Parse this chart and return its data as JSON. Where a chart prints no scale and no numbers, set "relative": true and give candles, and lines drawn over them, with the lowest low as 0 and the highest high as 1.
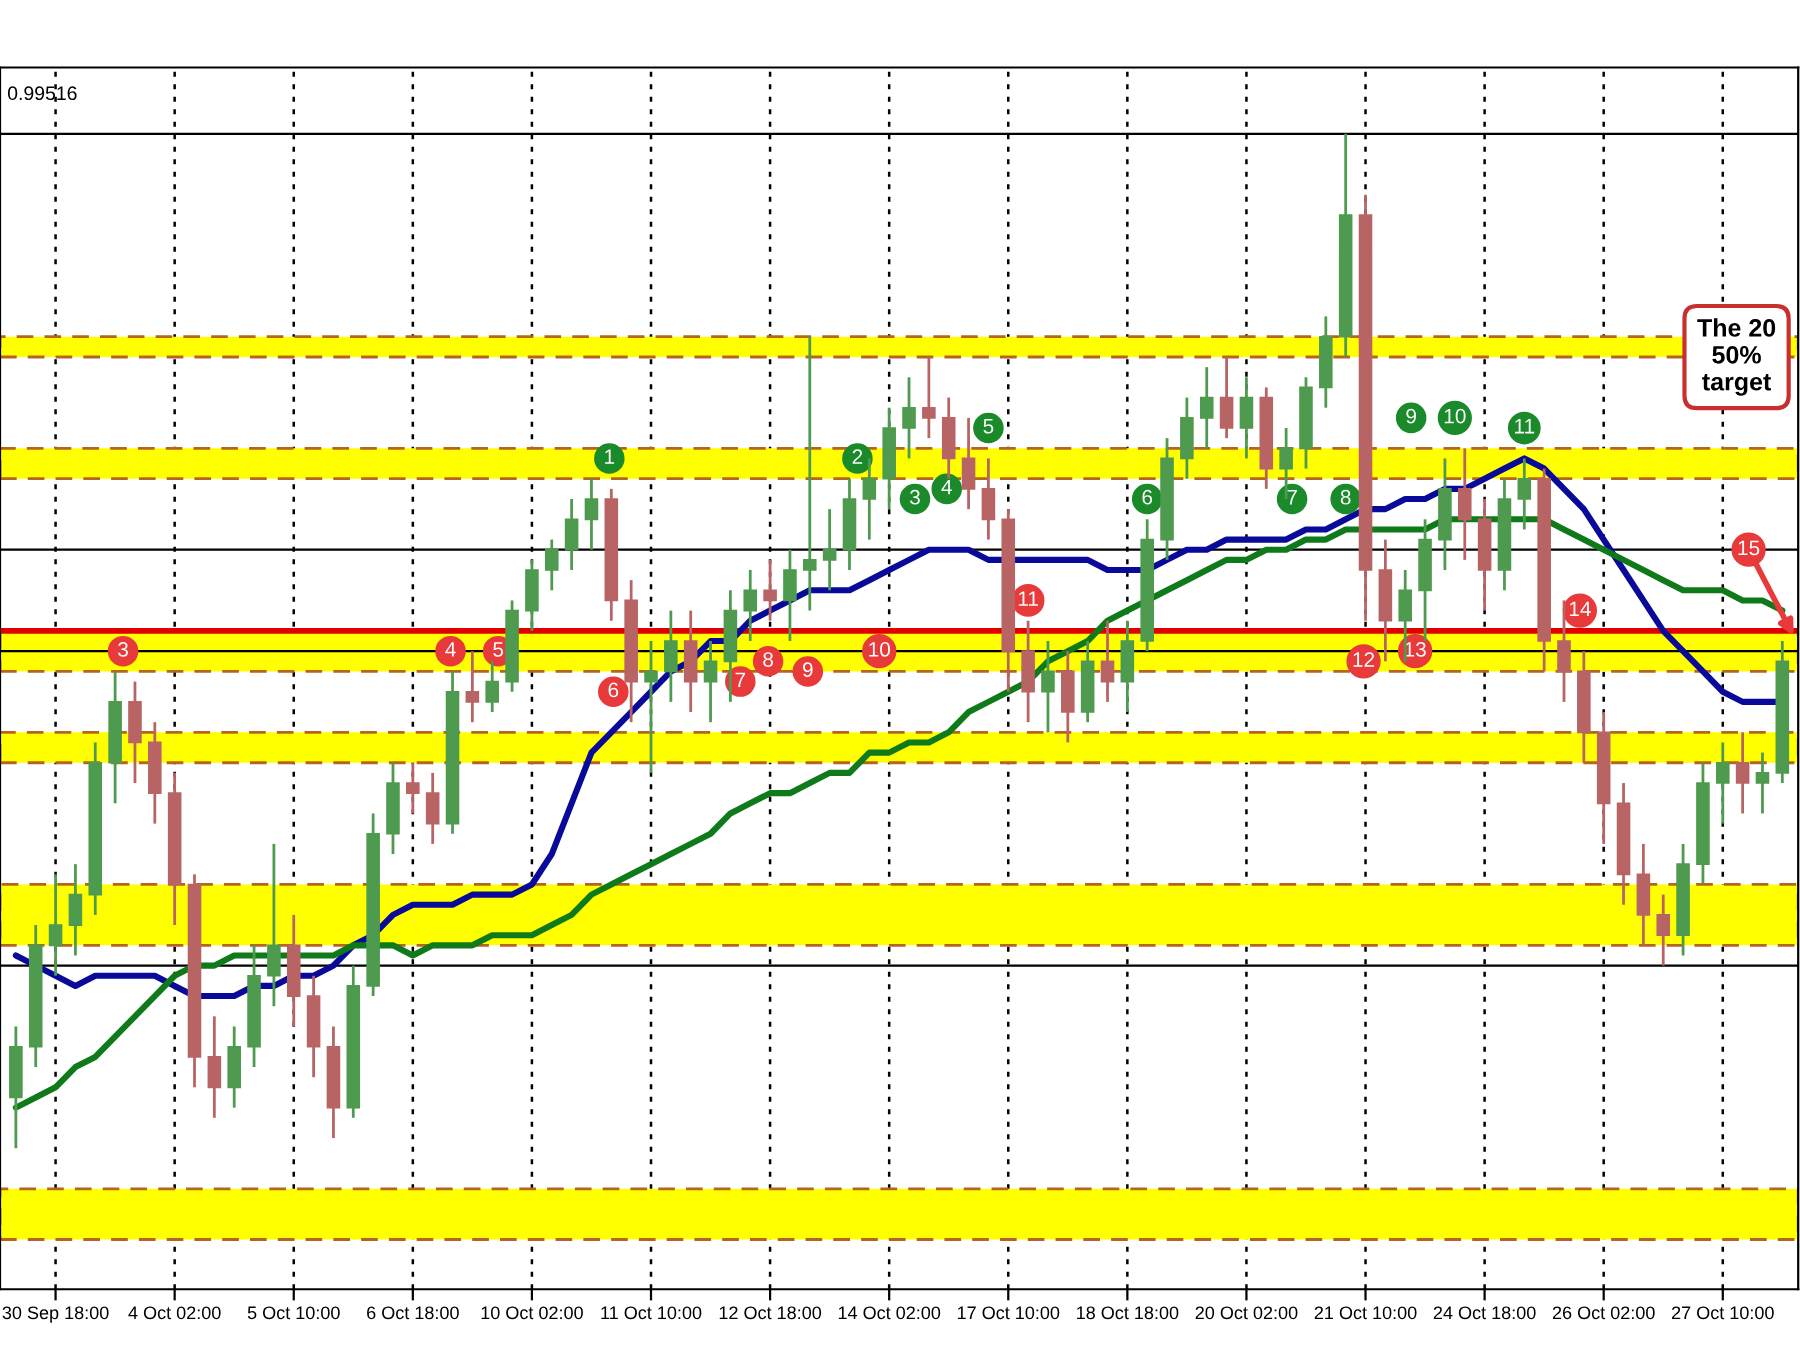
{
  "chart_data": {
    "type": "candlestick",
    "relative": true,
    "grid": "x",
    "legend": false,
    "categories": [
      null,
      null,
      "30 Sep 18:00",
      null,
      null,
      null,
      null,
      null,
      "4 Oct 02:00",
      null,
      null,
      null,
      null,
      null,
      "5 Oct 10:00",
      null,
      null,
      null,
      null,
      null,
      "6 Oct 18:00",
      null,
      null,
      null,
      null,
      null,
      "10 Oct 02:00",
      null,
      null,
      null,
      null,
      null,
      "11 Oct 10:00",
      null,
      null,
      null,
      null,
      null,
      "12 Oct 18:00",
      null,
      null,
      null,
      null,
      null,
      "14 Oct 02:00",
      null,
      null,
      null,
      null,
      null,
      "17 Oct 10:00",
      null,
      null,
      null,
      null,
      null,
      "18 Oct 18:00",
      null,
      null,
      null,
      null,
      null,
      "20 Oct 02:00",
      null,
      null,
      null,
      null,
      null,
      "21 Oct 10:00",
      null,
      null,
      null,
      null,
      null,
      "24 Oct 18:00",
      null,
      null,
      null,
      null,
      null,
      "26 Oct 02:00",
      null,
      null,
      null,
      null,
      null,
      "27 Oct 10:00",
      null,
      null,
      null
    ],
    "colors": [
      "#4e9a4e",
      "#4e9a4e",
      "#4e9a4e",
      "#4e9a4e",
      "#4e9a4e",
      "#4e9a4e",
      "#b86464",
      "#b86464",
      "#b86464",
      "#b86464",
      "#b86464",
      "#4e9a4e",
      "#4e9a4e",
      "#4e9a4e",
      "#b86464",
      "#b86464",
      "#b86464",
      "#4e9a4e",
      "#4e9a4e",
      "#4e9a4e",
      "#b86464",
      "#b86464",
      "#4e9a4e",
      "#b86464",
      "#4e9a4e",
      "#4e9a4e",
      "#4e9a4e",
      "#4e9a4e",
      "#4e9a4e",
      "#4e9a4e",
      "#b86464",
      "#b86464",
      "#4e9a4e",
      "#4e9a4e",
      "#b86464",
      "#4e9a4e",
      "#4e9a4e",
      "#4e9a4e",
      "#b86464",
      "#4e9a4e",
      "#4e9a4e",
      "#4e9a4e",
      "#4e9a4e",
      "#4e9a4e",
      "#4e9a4e",
      "#4e9a4e",
      "#b86464",
      "#b86464",
      "#b86464",
      "#b86464",
      "#b86464",
      "#b86464",
      "#4e9a4e",
      "#b86464",
      "#4e9a4e",
      "#b86464",
      "#4e9a4e",
      "#4e9a4e",
      "#4e9a4e",
      "#4e9a4e",
      "#4e9a4e",
      "#b86464",
      "#4e9a4e",
      "#b86464",
      "#4e9a4e",
      "#4e9a4e",
      "#4e9a4e",
      "#4e9a4e",
      "#b86464",
      "#b86464",
      "#4e9a4e",
      "#4e9a4e",
      "#4e9a4e",
      "#b86464",
      "#b86464",
      "#4e9a4e",
      "#4e9a4e",
      "#b86464",
      "#b86464",
      "#b86464",
      "#b86464",
      "#b86464",
      "#b86464",
      "#b86464",
      "#4e9a4e",
      "#4e9a4e",
      "#4e9a4e",
      "#b86464",
      "#4e9a4e",
      "#4e9a4e"
    ],
    "ohlc": [
      [
        0.05,
        0.12,
        0.0,
        0.1
      ],
      [
        0.1,
        0.22,
        0.08,
        0.2
      ],
      [
        0.2,
        0.27,
        0.17,
        0.22
      ],
      [
        0.22,
        0.28,
        0.19,
        0.25
      ],
      [
        0.25,
        0.4,
        0.23,
        0.38
      ],
      [
        0.38,
        0.47,
        0.34,
        0.44
      ],
      [
        0.44,
        0.46,
        0.36,
        0.4
      ],
      [
        0.4,
        0.42,
        0.32,
        0.35
      ],
      [
        0.35,
        0.37,
        0.22,
        0.26
      ],
      [
        0.26,
        0.27,
        0.06,
        0.09
      ],
      [
        0.09,
        0.13,
        0.03,
        0.06
      ],
      [
        0.06,
        0.12,
        0.04,
        0.1
      ],
      [
        0.1,
        0.2,
        0.08,
        0.17
      ],
      [
        0.17,
        0.3,
        0.14,
        0.2
      ],
      [
        0.2,
        0.23,
        0.12,
        0.15
      ],
      [
        0.15,
        0.17,
        0.07,
        0.1
      ],
      [
        0.1,
        0.12,
        0.01,
        0.04
      ],
      [
        0.04,
        0.18,
        0.03,
        0.16
      ],
      [
        0.16,
        0.33,
        0.15,
        0.31
      ],
      [
        0.31,
        0.38,
        0.29,
        0.36
      ],
      [
        0.36,
        0.38,
        0.33,
        0.35
      ],
      [
        0.35,
        0.37,
        0.3,
        0.32
      ],
      [
        0.32,
        0.47,
        0.31,
        0.45
      ],
      [
        0.45,
        0.49,
        0.42,
        0.44
      ],
      [
        0.44,
        0.48,
        0.43,
        0.46
      ],
      [
        0.46,
        0.54,
        0.45,
        0.53
      ],
      [
        0.53,
        0.58,
        0.51,
        0.57
      ],
      [
        0.57,
        0.6,
        0.55,
        0.59
      ],
      [
        0.59,
        0.64,
        0.57,
        0.62
      ],
      [
        0.62,
        0.66,
        0.59,
        0.64
      ],
      [
        0.64,
        0.65,
        0.52,
        0.54
      ],
      [
        0.54,
        0.56,
        0.42,
        0.46
      ],
      [
        0.46,
        0.5,
        0.37,
        0.47
      ],
      [
        0.47,
        0.53,
        0.44,
        0.5
      ],
      [
        0.5,
        0.53,
        0.43,
        0.46
      ],
      [
        0.46,
        0.5,
        0.42,
        0.48
      ],
      [
        0.48,
        0.55,
        0.44,
        0.53
      ],
      [
        0.53,
        0.57,
        0.5,
        0.55
      ],
      [
        0.55,
        0.58,
        0.52,
        0.54
      ],
      [
        0.54,
        0.59,
        0.5,
        0.57
      ],
      [
        0.57,
        0.8,
        0.53,
        0.58
      ],
      [
        0.58,
        0.63,
        0.55,
        0.59
      ],
      [
        0.59,
        0.66,
        0.57,
        0.64
      ],
      [
        0.64,
        0.68,
        0.6,
        0.66
      ],
      [
        0.66,
        0.73,
        0.63,
        0.71
      ],
      [
        0.71,
        0.76,
        0.68,
        0.73
      ],
      [
        0.73,
        0.78,
        0.7,
        0.72
      ],
      [
        0.72,
        0.74,
        0.66,
        0.68
      ],
      [
        0.68,
        0.72,
        0.63,
        0.65
      ],
      [
        0.65,
        0.68,
        0.6,
        0.62
      ],
      [
        0.62,
        0.63,
        0.45,
        0.49
      ],
      [
        0.49,
        0.52,
        0.42,
        0.45
      ],
      [
        0.45,
        0.5,
        0.41,
        0.47
      ],
      [
        0.47,
        0.49,
        0.4,
        0.43
      ],
      [
        0.43,
        0.5,
        0.42,
        0.48
      ],
      [
        0.48,
        0.52,
        0.44,
        0.46
      ],
      [
        0.46,
        0.52,
        0.43,
        0.5
      ],
      [
        0.5,
        0.62,
        0.49,
        0.6
      ],
      [
        0.6,
        0.7,
        0.58,
        0.68
      ],
      [
        0.68,
        0.74,
        0.66,
        0.72
      ],
      [
        0.72,
        0.77,
        0.69,
        0.74
      ],
      [
        0.74,
        0.78,
        0.7,
        0.71
      ],
      [
        0.71,
        0.76,
        0.68,
        0.74
      ],
      [
        0.74,
        0.75,
        0.65,
        0.67
      ],
      [
        0.67,
        0.71,
        0.64,
        0.69
      ],
      [
        0.69,
        0.76,
        0.67,
        0.75
      ],
      [
        0.75,
        0.82,
        0.73,
        0.8
      ],
      [
        0.8,
        1.0,
        0.78,
        0.92
      ],
      [
        0.92,
        0.94,
        0.52,
        0.57
      ],
      [
        0.57,
        0.6,
        0.48,
        0.52
      ],
      [
        0.52,
        0.57,
        0.48,
        0.55
      ],
      [
        0.55,
        0.62,
        0.5,
        0.6
      ],
      [
        0.6,
        0.68,
        0.57,
        0.65
      ],
      [
        0.65,
        0.69,
        0.58,
        0.62
      ],
      [
        0.62,
        0.64,
        0.53,
        0.57
      ],
      [
        0.57,
        0.66,
        0.55,
        0.64
      ],
      [
        0.64,
        0.68,
        0.61,
        0.66
      ],
      [
        0.66,
        0.67,
        0.47,
        0.5
      ],
      [
        0.5,
        0.54,
        0.44,
        0.47
      ],
      [
        0.47,
        0.49,
        0.38,
        0.41
      ],
      [
        0.41,
        0.43,
        0.3,
        0.34
      ],
      [
        0.34,
        0.36,
        0.24,
        0.27
      ],
      [
        0.27,
        0.3,
        0.2,
        0.23
      ],
      [
        0.23,
        0.25,
        0.18,
        0.21
      ],
      [
        0.21,
        0.3,
        0.19,
        0.28
      ],
      [
        0.28,
        0.38,
        0.26,
        0.36
      ],
      [
        0.36,
        0.4,
        0.32,
        0.38
      ],
      [
        0.38,
        0.41,
        0.33,
        0.36
      ],
      [
        0.36,
        0.39,
        0.33,
        0.37
      ],
      [
        0.37,
        0.5,
        0.36,
        0.48
      ]
    ],
    "series": [
      {
        "type": "line",
        "color": "#0a0a9a",
        "values": [
          0.19,
          0.18,
          0.17,
          0.16,
          0.17,
          0.17,
          0.17,
          0.17,
          0.16,
          0.15,
          0.15,
          0.15,
          0.16,
          0.16,
          0.17,
          0.17,
          0.18,
          0.2,
          0.21,
          0.23,
          0.24,
          0.24,
          0.24,
          0.25,
          0.25,
          0.25,
          0.26,
          0.29,
          0.34,
          0.39,
          0.41,
          0.43,
          0.45,
          0.47,
          0.48,
          0.5,
          0.5,
          0.52,
          0.53,
          0.54,
          0.55,
          0.55,
          0.55,
          0.56,
          0.57,
          0.58,
          0.59,
          0.59,
          0.59,
          0.58,
          0.58,
          0.58,
          0.58,
          0.58,
          0.58,
          0.57,
          0.57,
          0.57,
          0.58,
          0.59,
          0.59,
          0.6,
          0.6,
          0.6,
          0.6,
          0.61,
          0.61,
          0.62,
          0.63,
          0.63,
          0.64,
          0.64,
          0.65,
          0.65,
          0.66,
          0.67,
          0.68,
          0.67,
          0.65,
          0.63,
          0.6,
          0.57,
          0.54,
          0.51,
          0.49,
          0.47,
          0.45,
          0.44,
          0.44,
          0.44
        ]
      },
      {
        "type": "line",
        "color": "#0f7a1a",
        "values": [
          0.04,
          0.05,
          0.06,
          0.08,
          0.09,
          0.11,
          0.13,
          0.15,
          0.17,
          0.18,
          0.18,
          0.19,
          0.19,
          0.19,
          0.19,
          0.19,
          0.19,
          0.2,
          0.2,
          0.2,
          0.19,
          0.2,
          0.2,
          0.2,
          0.21,
          0.21,
          0.21,
          0.22,
          0.23,
          0.25,
          0.26,
          0.27,
          0.28,
          0.29,
          0.3,
          0.31,
          0.33,
          0.34,
          0.35,
          0.35,
          0.36,
          0.37,
          0.37,
          0.39,
          0.39,
          0.4,
          0.4,
          0.41,
          0.43,
          0.44,
          0.45,
          0.46,
          0.48,
          0.49,
          0.5,
          0.52,
          0.53,
          0.54,
          0.55,
          0.56,
          0.57,
          0.58,
          0.58,
          0.59,
          0.59,
          0.6,
          0.6,
          0.61,
          0.61,
          0.61,
          0.61,
          0.61,
          0.62,
          0.62,
          0.62,
          0.62,
          0.62,
          0.62,
          0.61,
          0.6,
          0.59,
          0.58,
          0.57,
          0.56,
          0.55,
          0.55,
          0.55,
          0.54,
          0.54,
          0.53
        ]
      }
    ],
    "bands": [
      {
        "axis": "y",
        "from": 0.78,
        "to": 0.8,
        "color": "#ffff00"
      },
      {
        "axis": "y",
        "from": 0.66,
        "to": 0.69,
        "color": "#ffff00"
      },
      {
        "axis": "y",
        "from": 0.47,
        "to": 0.51,
        "color": "#ffff00"
      },
      {
        "axis": "y",
        "from": 0.38,
        "to": 0.41,
        "color": "#ffff00"
      },
      {
        "axis": "y",
        "from": 0.2,
        "to": 0.26,
        "color": "#ffff00"
      },
      {
        "axis": "y",
        "from": -0.09,
        "to": -0.04,
        "color": "#ffff00"
      }
    ],
    "ref_lines": [
      {
        "axis": "y",
        "value": 0.51,
        "color": "#e00000",
        "line_style": "solid"
      },
      {
        "axis": "y",
        "value": 1.0,
        "color": "#000000",
        "line_style": "solid"
      },
      {
        "axis": "y",
        "value": 0.59,
        "color": "#000000",
        "line_style": "solid"
      },
      {
        "axis": "y",
        "value": 0.49,
        "color": "#000000",
        "line_style": "solid"
      },
      {
        "axis": "y",
        "value": 0.18,
        "color": "#000000",
        "line_style": "solid"
      }
    ],
    "annotations": [
      "0.99516",
      "The 20\n50%\ntarget",
      {
        "text": "1",
        "y": 0.68
      },
      {
        "text": "2",
        "y": 0.68
      },
      {
        "text": "3",
        "y": 0.64
      },
      {
        "text": "4",
        "y": 0.65
      },
      {
        "text": "5",
        "y": 0.71
      },
      {
        "text": "6",
        "y": 0.64
      },
      {
        "text": "7",
        "y": 0.64
      },
      {
        "text": "8",
        "y": 0.64
      },
      {
        "text": "9",
        "y": 0.72
      },
      {
        "text": "10",
        "y": 0.72
      },
      {
        "text": "11",
        "y": 0.71
      },
      {
        "text": "3",
        "y": 0.49
      },
      {
        "text": "4",
        "y": 0.49
      },
      {
        "text": "5",
        "y": 0.49
      },
      {
        "text": "6",
        "y": 0.45
      },
      {
        "text": "7",
        "y": 0.46
      },
      {
        "text": "8",
        "y": 0.48
      },
      {
        "text": "9",
        "y": 0.47
      },
      {
        "text": "10",
        "y": 0.49
      },
      {
        "text": "11",
        "y": 0.54
      },
      {
        "text": "12",
        "y": 0.48
      },
      {
        "text": "13",
        "y": 0.49
      },
      {
        "text": "14",
        "y": 0.53
      },
      {
        "text": "15",
        "y": 0.59
      }
    ]
  }
}
